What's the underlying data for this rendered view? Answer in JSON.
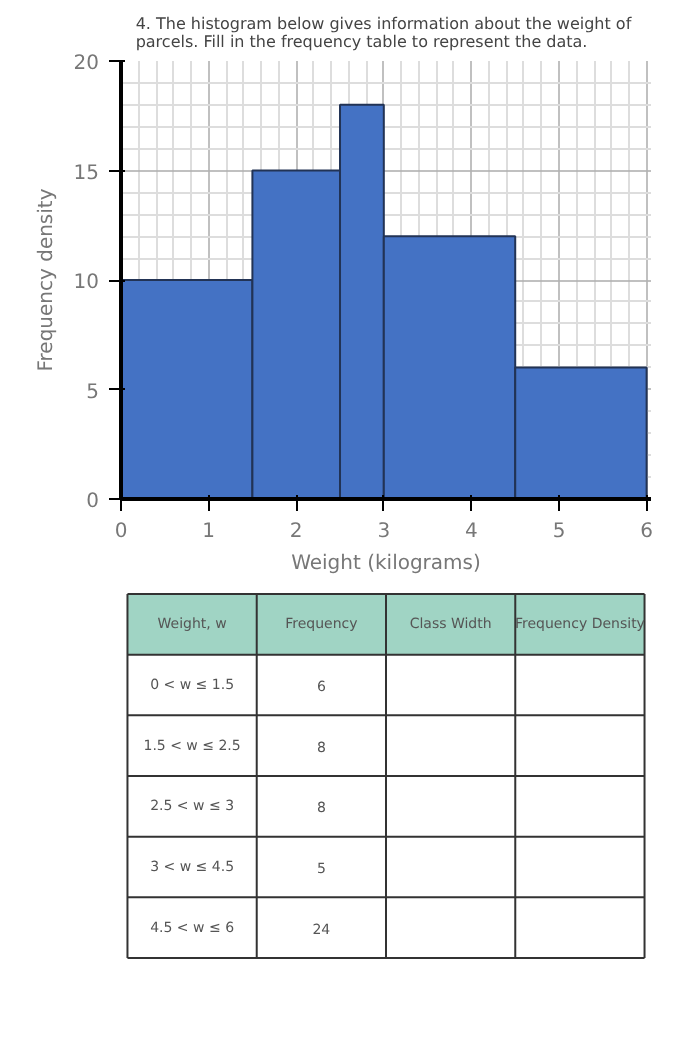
{
  "chart_data": [
    {
      "type": "histogram",
      "title": "4.  The histogram below gives information about the weight of parcels. Fill in the frequency table to represent the data.",
      "xlabel": "Weight (kilograms)",
      "ylabel": "Frequency density",
      "bins": [
        0,
        1.5,
        2.5,
        3,
        4.5,
        6
      ],
      "values": [
        10,
        15,
        18,
        12,
        6
      ],
      "color": "#4472c4",
      "xlim": [
        0,
        6.05
      ],
      "ylim": [
        0,
        20
      ],
      "xticks": [
        0,
        1,
        2,
        3,
        4,
        5,
        6
      ],
      "yticks": [
        0,
        5,
        10,
        15,
        20
      ],
      "grid": true
    },
    {
      "type": "other",
      "categories": [
        "Weight, w",
        "Frequency",
        "Class Width",
        "Frequency Density"
      ],
      "y_categories": [
        "0 < w ≤ 1.5",
        "1.5 < w ≤ 2.5",
        "2.5 < w ≤ 3",
        "3 < w ≤ 4.5",
        "4.5 < w ≤ 6"
      ],
      "cell_labels": [
        [
          "6",
          null,
          null
        ],
        [
          "8",
          null,
          null
        ],
        [
          "8",
          null,
          null
        ],
        [
          "5",
          null,
          null
        ],
        [
          "24",
          null,
          null
        ]
      ],
      "color": "#a0d4c4"
    }
  ]
}
